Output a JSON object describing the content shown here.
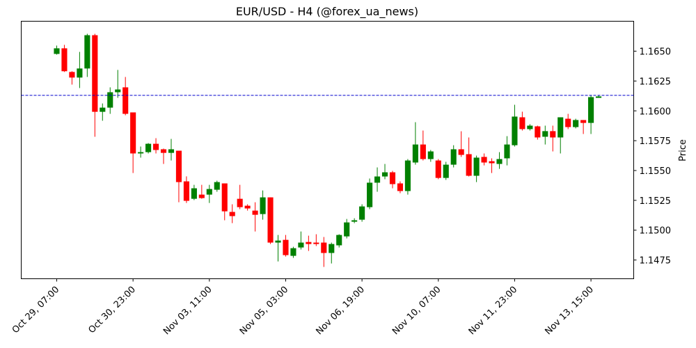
{
  "chart_data": {
    "type": "candlestick",
    "title": "EUR/USD - H4 (@forex_ua_news)",
    "ylabel": "Price",
    "categories": [
      "Oct 29, 07:00",
      null,
      null,
      null,
      null,
      null,
      null,
      null,
      null,
      null,
      "Oct 30, 23:00",
      null,
      null,
      null,
      null,
      null,
      null,
      null,
      null,
      null,
      "Nov 03, 11:00",
      null,
      null,
      null,
      null,
      null,
      null,
      null,
      null,
      null,
      "Nov 05, 03:00",
      null,
      null,
      null,
      null,
      null,
      null,
      null,
      null,
      null,
      "Nov 06, 19:00",
      null,
      null,
      null,
      null,
      null,
      null,
      null,
      null,
      null,
      "Nov 10, 07:00",
      null,
      null,
      null,
      null,
      null,
      null,
      null,
      null,
      null,
      "Nov 11, 23:00",
      null,
      null,
      null,
      null,
      null,
      null,
      null,
      null,
      null,
      "Nov 13, 15:00",
      null
    ],
    "open": [
      1.16477,
      1.16524,
      1.16326,
      1.16279,
      1.16355,
      1.16634,
      1.15992,
      1.16027,
      1.16156,
      1.16197,
      1.15987,
      1.15643,
      1.15654,
      1.15724,
      1.15678,
      1.15648,
      1.15666,
      1.15409,
      1.15263,
      1.15298,
      1.15298,
      1.15339,
      1.15392,
      1.15153,
      1.15263,
      1.15205,
      1.15164,
      1.15135,
      1.15275,
      1.14896,
      1.14919,
      1.14785,
      1.14855,
      1.14901,
      1.14896,
      1.14896,
      1.14809,
      1.14873,
      1.14948,
      1.15071,
      1.15088,
      1.15193,
      1.15398,
      1.1545,
      1.15485,
      1.15392,
      1.15328,
      1.15567,
      1.15718,
      1.15596,
      1.15584,
      1.15438,
      1.15549,
      1.15678,
      1.15637,
      1.15456,
      1.15614,
      1.15578,
      1.15555,
      1.15602,
      1.15712,
      1.15946,
      1.15847,
      1.1587,
      1.15783,
      1.1583,
      1.15777,
      1.15934,
      1.15864,
      1.15923,
      1.15899,
      1.16109
    ],
    "high": [
      1.16547,
      1.16553,
      1.16332,
      1.16494,
      1.16646,
      1.16646,
      1.16062,
      1.16197,
      1.16343,
      1.16284,
      1.15987,
      1.15701,
      1.1573,
      1.15771,
      1.15684,
      1.15765,
      1.15666,
      1.15451,
      1.1538,
      1.1538,
      1.1538,
      1.15415,
      1.15392,
      1.15217,
      1.1538,
      1.15217,
      1.15234,
      1.15333,
      1.15275,
      1.1496,
      1.1496,
      1.14861,
      1.14989,
      1.14954,
      1.14966,
      1.14943,
      1.14896,
      1.14966,
      1.15094,
      1.151,
      1.15217,
      1.15433,
      1.15526,
      1.15555,
      1.15497,
      1.15409,
      1.15596,
      1.15905,
      1.15835,
      1.15672,
      1.15596,
      1.15573,
      1.15712,
      1.15829,
      1.15777,
      1.15625,
      1.15643,
      1.15602,
      1.15654,
      1.15788,
      1.16051,
      1.15993,
      1.15888,
      1.15876,
      1.15876,
      1.15876,
      1.15946,
      1.15975,
      1.15934,
      1.15923,
      1.16132,
      1.16127
    ],
    "low": [
      1.16471,
      1.16326,
      1.1622,
      1.16191,
      1.16284,
      1.15783,
      1.15917,
      1.15975,
      1.16109,
      1.15963,
      1.15479,
      1.15608,
      1.15643,
      1.15643,
      1.15555,
      1.15584,
      1.15234,
      1.15228,
      1.15252,
      1.15263,
      1.15228,
      1.15322,
      1.15083,
      1.15059,
      1.15176,
      1.15164,
      1.14989,
      1.15088,
      1.14884,
      1.14738,
      1.14779,
      1.14768,
      1.14838,
      1.14826,
      1.14867,
      1.14692,
      1.14721,
      1.14855,
      1.14931,
      1.15059,
      1.15071,
      1.15176,
      1.15322,
      1.15427,
      1.15351,
      1.1531,
      1.15298,
      1.15549,
      1.15584,
      1.15573,
      1.15427,
      1.15421,
      1.15526,
      1.15614,
      1.1545,
      1.15403,
      1.15543,
      1.15479,
      1.15514,
      1.15543,
      1.15701,
      1.15835,
      1.15835,
      1.15759,
      1.15718,
      1.1566,
      1.15643,
      1.15847,
      1.15853,
      1.15806,
      1.15806,
      1.16109
    ],
    "close": [
      1.16524,
      1.16332,
      1.16279,
      1.16355,
      1.16634,
      1.15992,
      1.16027,
      1.16156,
      1.16179,
      1.15975,
      1.15643,
      1.15654,
      1.15724,
      1.15672,
      1.15648,
      1.15678,
      1.15403,
      1.15246,
      1.15351,
      1.15269,
      1.15345,
      1.15403,
      1.15158,
      1.15118,
      1.15193,
      1.15182,
      1.15129,
      1.15275,
      1.14896,
      1.14913,
      1.14791,
      1.14849,
      1.14896,
      1.14884,
      1.14884,
      1.14809,
      1.14884,
      1.1496,
      1.15065,
      1.15083,
      1.15199,
      1.15398,
      1.1545,
      1.15485,
      1.15386,
      1.15328,
      1.15584,
      1.15718,
      1.15596,
      1.1566,
      1.15438,
      1.15549,
      1.15678,
      1.15631,
      1.15456,
      1.15608,
      1.15567,
      1.15561,
      1.15596,
      1.15718,
      1.15952,
      1.15847,
      1.15876,
      1.15777,
      1.1583,
      1.15777,
      1.15946,
      1.15864,
      1.15923,
      1.15899,
      1.16115,
      1.16121
    ],
    "up_color": "#008000",
    "down_color": "#ff0000",
    "hline": {
      "value": 1.1613,
      "color": "#0000cc"
    },
    "xlim": [
      -4.65,
      75.6
    ],
    "ylim": [
      1.14593,
      1.16751
    ],
    "yticks": [
      1.1475,
      {
        "value": 1.15,
        "label": "1.1500"
      },
      1.1525,
      {
        "value": 1.155,
        "label": "1.1550"
      },
      1.1575,
      {
        "value": 1.16,
        "label": "1.1600"
      },
      1.1625,
      {
        "value": 1.165,
        "label": "1.1650"
      }
    ]
  }
}
